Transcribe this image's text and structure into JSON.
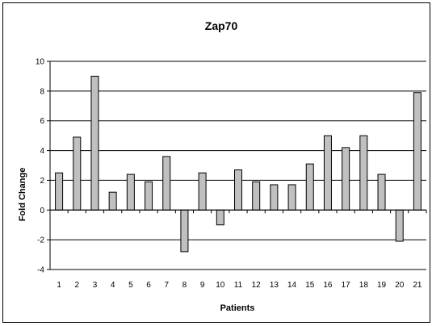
{
  "chart_data": {
    "type": "bar",
    "title": "Zap70",
    "xlabel": "Patients",
    "ylabel": "Fold Change",
    "categories": [
      "1",
      "2",
      "3",
      "4",
      "5",
      "6",
      "7",
      "8",
      "9",
      "10",
      "11",
      "12",
      "13",
      "14",
      "15",
      "16",
      "17",
      "18",
      "19",
      "20",
      "21"
    ],
    "values": [
      2.5,
      4.9,
      9.0,
      1.2,
      2.4,
      1.9,
      3.6,
      -2.8,
      2.5,
      -1.0,
      2.7,
      1.9,
      1.7,
      1.7,
      3.1,
      5.0,
      4.2,
      5.0,
      2.4,
      -2.1,
      7.9
    ],
    "ylim": [
      -4,
      10
    ],
    "yticks": [
      -4,
      -2,
      0,
      2,
      4,
      6,
      8,
      10
    ],
    "grid": true,
    "legend": "none",
    "bar_color": "#c0c0c0",
    "bar_stroke": "#000000"
  }
}
